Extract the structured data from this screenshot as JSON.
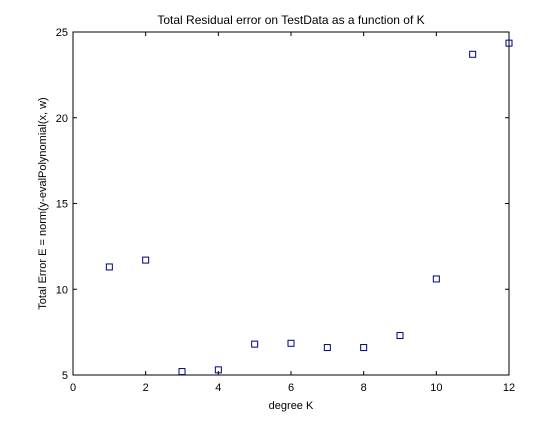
{
  "chart_data": {
    "type": "scatter",
    "title": "Total Residual error on TestData as a function of K",
    "xlabel": "degree K",
    "ylabel": "Total Error E = norm(y-evalPolynomial(x, w)",
    "xlim": [
      0,
      12
    ],
    "ylim": [
      5,
      25
    ],
    "xticks": [
      0,
      2,
      4,
      6,
      8,
      10,
      12
    ],
    "yticks": [
      5,
      10,
      15,
      20,
      25
    ],
    "grid": false,
    "marker": "square",
    "marker_color": "#00007f",
    "x": [
      1,
      2,
      3,
      4,
      5,
      6,
      7,
      8,
      9,
      10,
      11,
      12
    ],
    "y": [
      11.3,
      11.7,
      5.2,
      5.3,
      6.8,
      6.85,
      6.6,
      6.6,
      7.3,
      10.6,
      23.7,
      24.35
    ]
  }
}
